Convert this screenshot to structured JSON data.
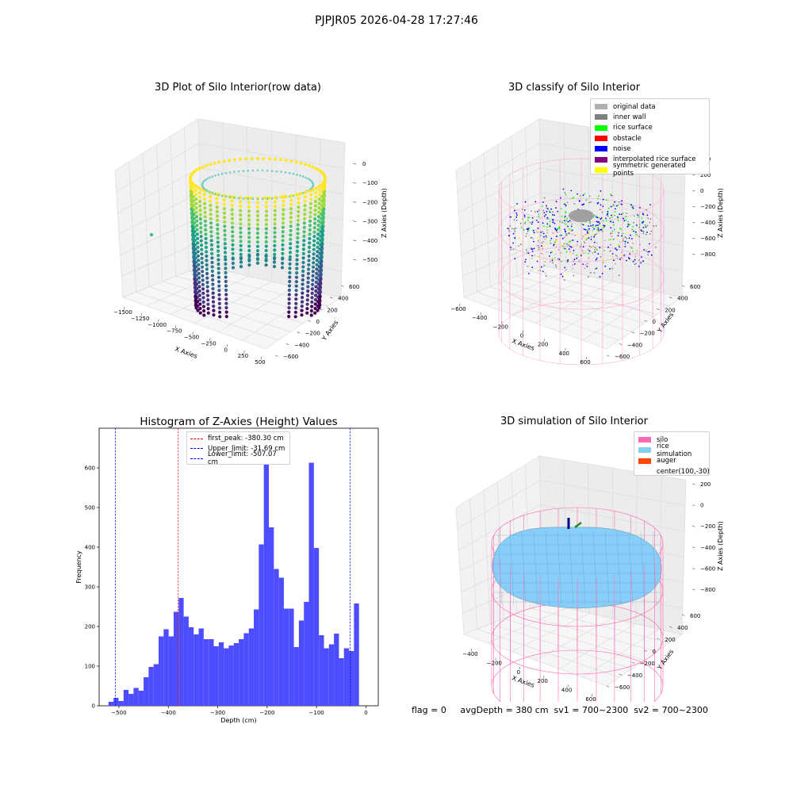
{
  "figure": {
    "suptitle": "PJPJR05 2026-04-28 17:27:46",
    "footer_text": "flag = 0     avgDepth = 380 cm  sv1 = 700~2300  sv2 = 700~2300"
  },
  "colors": {
    "histogram_bar": "#4d4dff",
    "peak_line": "#ff0000",
    "limit_line": "#0000ff",
    "silo_wire": "#ff69b4",
    "rice_fill": "#87cefa",
    "viridis_low": "#440154",
    "viridis_high": "#fde725"
  },
  "panels": {
    "raw": {
      "title": "3D Plot of Silo Interior(row data)",
      "xlabel": "X Axies",
      "ylabel": "Y Axies",
      "zlabel": "Z Axies (Depth)",
      "xticks": [
        "−1500",
        "−1250",
        "−1000",
        "−750",
        "−500",
        "−250",
        "0",
        "250",
        "500"
      ],
      "yticks": [
        "600",
        "400",
        "200",
        "0",
        "−200",
        "−400",
        "−600"
      ],
      "zticks": [
        "0",
        "−100",
        "−200",
        "−300",
        "−400",
        "−500"
      ]
    },
    "classify": {
      "title": "3D classify of Silo Interior",
      "xlabel": "X Axies",
      "ylabel": "Y Axies",
      "zlabel": "Z Axies (Depth)",
      "xticks": [
        "−600",
        "−400",
        "−200",
        "0",
        "200",
        "400",
        "600"
      ],
      "yticks": [
        "600",
        "400",
        "200",
        "0",
        "−200",
        "−400",
        "−600"
      ],
      "zticks": [
        "400",
        "200",
        "0",
        "−200",
        "−400",
        "−600",
        "−800"
      ],
      "legend": [
        {
          "label": "original data",
          "color": "#b0b0b0"
        },
        {
          "label": "inner wall",
          "color": "#808080"
        },
        {
          "label": "rice surface",
          "color": "#00ff00"
        },
        {
          "label": "obstacle",
          "color": "#ff0000"
        },
        {
          "label": "noise",
          "color": "#0000ff"
        },
        {
          "label": "interpolated rice surface",
          "color": "#800080"
        },
        {
          "label": "symmetric generated points",
          "color": "#ffff00"
        }
      ]
    },
    "simulation": {
      "title": "3D simulation of Silo Interior",
      "xlabel": "X Axies",
      "ylabel": "Y Axies",
      "zlabel": "Z Axies (Depth)",
      "xticks": [
        "−400",
        "−200",
        "0",
        "200",
        "400",
        "600"
      ],
      "yticks": [
        "600",
        "400",
        "200",
        "0",
        "−200",
        "−400",
        "−600"
      ],
      "zticks": [
        "200",
        "0",
        "−200",
        "−400",
        "−600",
        "−800"
      ],
      "legend": [
        {
          "label": "silo",
          "color": "#ff69b4"
        },
        {
          "label": "rice simulation",
          "color": "#87ceeb"
        },
        {
          "label": "auger",
          "color": "#ff4500"
        },
        {
          "label": "center(100,-30)",
          "color": ""
        }
      ]
    }
  },
  "chart_data": {
    "type": "bar",
    "title": "Histogram of Z-Axies (Height) Values",
    "xlabel": "Depth (cm)",
    "ylabel": "Frequency",
    "xlim": [
      -540,
      25
    ],
    "ylim": [
      0,
      700
    ],
    "xticks": [
      -500,
      -400,
      -300,
      -200,
      -100,
      0
    ],
    "yticks": [
      0,
      100,
      200,
      300,
      400,
      500,
      600
    ],
    "bin_start": -521,
    "bin_width": 10.14,
    "values": [
      10,
      20,
      12,
      40,
      30,
      45,
      38,
      72,
      98,
      105,
      175,
      193,
      175,
      237,
      272,
      225,
      198,
      180,
      195,
      168,
      168,
      150,
      160,
      145,
      152,
      158,
      168,
      183,
      195,
      243,
      407,
      665,
      450,
      345,
      323,
      245,
      245,
      148,
      215,
      262,
      613,
      398,
      178,
      145,
      155,
      182,
      120,
      145,
      138,
      258
    ],
    "vlines": [
      {
        "label": "first_peak: -380.30 cm",
        "x": -380.3,
        "color": "#ff0000"
      },
      {
        "label": "Upper_limit: -31.69 cm",
        "x": -31.69,
        "color": "#0000ff"
      },
      {
        "label": "Lower_limit: -507.07 cm",
        "x": -507.07,
        "color": "#0000ff"
      }
    ],
    "legend_position": "top-center"
  }
}
